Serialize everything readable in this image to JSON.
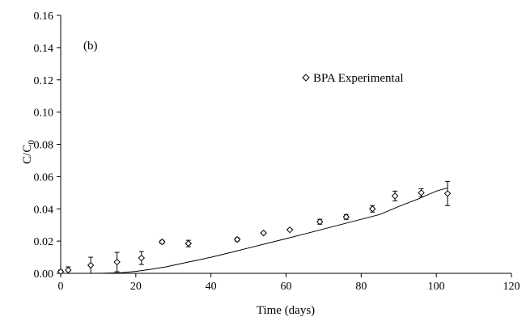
{
  "chart_data": {
    "type": "scatter",
    "panel_label": "(b)",
    "xlabel": "Time (days)",
    "ylabel": "C/C",
    "ylabel_subscript": "0",
    "xlim": [
      0,
      120
    ],
    "ylim": [
      0,
      0.16
    ],
    "xticks": [
      "0",
      "20",
      "40",
      "60",
      "80",
      "100",
      "120"
    ],
    "yticks": [
      "0.00",
      "0.02",
      "0.04",
      "0.06",
      "0.08",
      "0.10",
      "0.12",
      "0.14",
      "0.16"
    ],
    "grid": false,
    "legend_position": "top-center",
    "series": [
      {
        "name": "BPA Experimental",
        "marker": "diamond",
        "points": [
          {
            "x": 0,
            "y": 0.001,
            "err": 0.001
          },
          {
            "x": 2,
            "y": 0.002,
            "err": 0.002
          },
          {
            "x": 8,
            "y": 0.005,
            "err": 0.005
          },
          {
            "x": 15,
            "y": 0.007,
            "err": 0.006
          },
          {
            "x": 21.5,
            "y": 0.0095,
            "err": 0.004
          },
          {
            "x": 27,
            "y": 0.0195,
            "err": 0.001
          },
          {
            "x": 34,
            "y": 0.0185,
            "err": 0.002
          },
          {
            "x": 47,
            "y": 0.021,
            "err": 0.001
          },
          {
            "x": 54,
            "y": 0.025,
            "err": 0.0005
          },
          {
            "x": 61,
            "y": 0.027,
            "err": 0.0005
          },
          {
            "x": 69,
            "y": 0.032,
            "err": 0.0015
          },
          {
            "x": 76,
            "y": 0.035,
            "err": 0.0015
          },
          {
            "x": 83,
            "y": 0.04,
            "err": 0.002
          },
          {
            "x": 89,
            "y": 0.048,
            "err": 0.003
          },
          {
            "x": 96,
            "y": 0.05,
            "err": 0.0025
          },
          {
            "x": 103,
            "y": 0.0495,
            "err": 0.0075
          }
        ]
      },
      {
        "name": "",
        "type": "line",
        "x": [
          0,
          8,
          12,
          16,
          20,
          24,
          28,
          32,
          36,
          40,
          45,
          50,
          55,
          60,
          65,
          70,
          75,
          80,
          85,
          90,
          95,
          100,
          103
        ],
        "y": [
          0,
          0,
          0.0001,
          0.0004,
          0.0012,
          0.0025,
          0.004,
          0.006,
          0.008,
          0.01,
          0.0128,
          0.0157,
          0.0186,
          0.0215,
          0.0245,
          0.0275,
          0.0305,
          0.0335,
          0.0365,
          0.0415,
          0.046,
          0.051,
          0.053
        ]
      }
    ]
  }
}
